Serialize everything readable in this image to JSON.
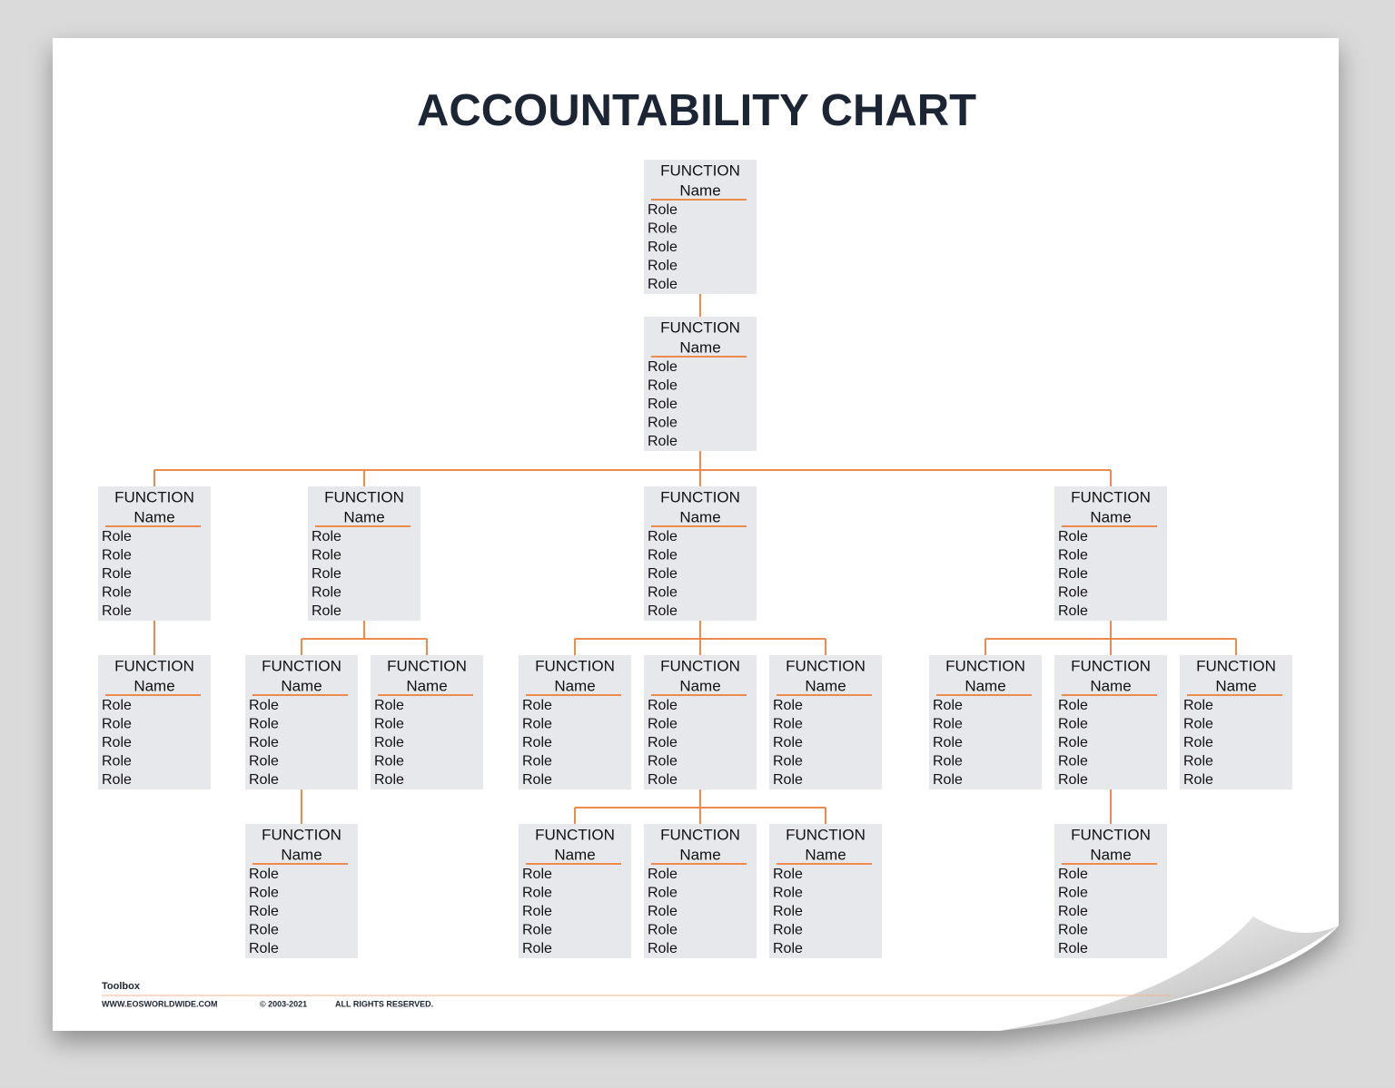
{
  "title": "ACCOUNTABILITY CHART",
  "nodes": [
    {
      "function": "FUNCTION",
      "name": "Name",
      "roles": [
        "Role",
        "Role",
        "Role",
        "Role",
        "Role"
      ]
    },
    {
      "function": "FUNCTION",
      "name": "Name",
      "roles": [
        "Role",
        "Role",
        "Role",
        "Role",
        "Role"
      ]
    },
    {
      "function": "FUNCTION",
      "name": "Name",
      "roles": [
        "Role",
        "Role",
        "Role",
        "Role",
        "Role"
      ]
    },
    {
      "function": "FUNCTION",
      "name": "Name",
      "roles": [
        "Role",
        "Role",
        "Role",
        "Role",
        "Role"
      ]
    },
    {
      "function": "FUNCTION",
      "name": "Name",
      "roles": [
        "Role",
        "Role",
        "Role",
        "Role",
        "Role"
      ]
    },
    {
      "function": "FUNCTION",
      "name": "Name",
      "roles": [
        "Role",
        "Role",
        "Role",
        "Role",
        "Role"
      ]
    },
    {
      "function": "FUNCTION",
      "name": "Name",
      "roles": [
        "Role",
        "Role",
        "Role",
        "Role",
        "Role"
      ]
    },
    {
      "function": "FUNCTION",
      "name": "Name",
      "roles": [
        "Role",
        "Role",
        "Role",
        "Role",
        "Role"
      ]
    },
    {
      "function": "FUNCTION",
      "name": "Name",
      "roles": [
        "Role",
        "Role",
        "Role",
        "Role",
        "Role"
      ]
    },
    {
      "function": "FUNCTION",
      "name": "Name",
      "roles": [
        "Role",
        "Role",
        "Role",
        "Role",
        "Role"
      ]
    },
    {
      "function": "FUNCTION",
      "name": "Name",
      "roles": [
        "Role",
        "Role",
        "Role",
        "Role",
        "Role"
      ]
    },
    {
      "function": "FUNCTION",
      "name": "Name",
      "roles": [
        "Role",
        "Role",
        "Role",
        "Role",
        "Role"
      ]
    },
    {
      "function": "FUNCTION",
      "name": "Name",
      "roles": [
        "Role",
        "Role",
        "Role",
        "Role",
        "Role"
      ]
    },
    {
      "function": "FUNCTION",
      "name": "Name",
      "roles": [
        "Role",
        "Role",
        "Role",
        "Role",
        "Role"
      ]
    },
    {
      "function": "FUNCTION",
      "name": "Name",
      "roles": [
        "Role",
        "Role",
        "Role",
        "Role",
        "Role"
      ]
    },
    {
      "function": "FUNCTION",
      "name": "Name",
      "roles": [
        "Role",
        "Role",
        "Role",
        "Role",
        "Role"
      ]
    },
    {
      "function": "FUNCTION",
      "name": "Name",
      "roles": [
        "Role",
        "Role",
        "Role",
        "Role",
        "Role"
      ]
    },
    {
      "function": "FUNCTION",
      "name": "Name",
      "roles": [
        "Role",
        "Role",
        "Role",
        "Role",
        "Role"
      ]
    },
    {
      "function": "FUNCTION",
      "name": "Name",
      "roles": [
        "Role",
        "Role",
        "Role",
        "Role",
        "Role"
      ]
    },
    {
      "function": "FUNCTION",
      "name": "Name",
      "roles": [
        "Role",
        "Role",
        "Role",
        "Role",
        "Role"
      ]
    }
  ],
  "footer": {
    "label": "Toolbox",
    "website": "WWW.EOSWORLDWIDE.COM",
    "copyright": "© 2003-2021",
    "rights": "ALL RIGHTS RESERVED."
  }
}
